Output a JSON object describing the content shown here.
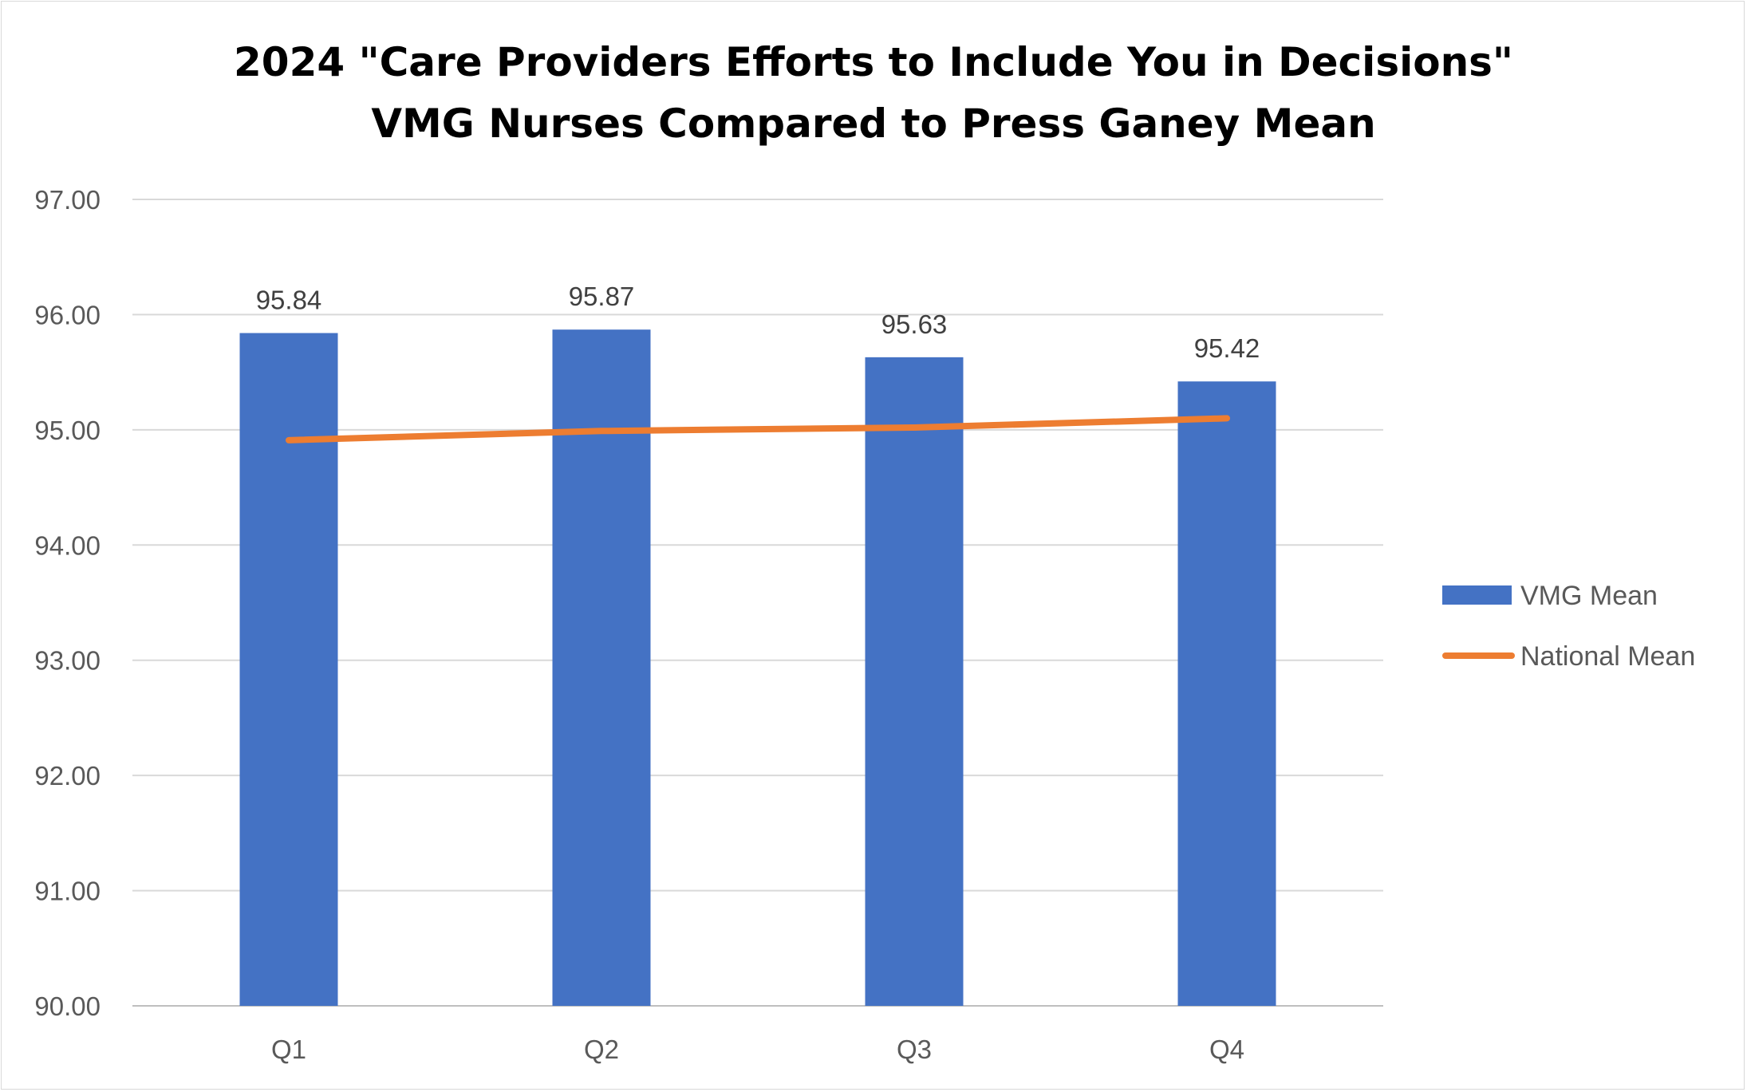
{
  "chart_data": {
    "type": "bar",
    "title": "2024 \"Care Providers Efforts to Include You in Decisions\"",
    "subtitle": "VMG Nurses Compared to Press Ganey Mean",
    "categories": [
      "Q1",
      "Q2",
      "Q3",
      "Q4"
    ],
    "series": [
      {
        "name": "VMG Mean",
        "type": "bar",
        "color": "#4472C4",
        "values": [
          95.84,
          95.87,
          95.63,
          95.42
        ],
        "data_labels": [
          "95.84",
          "95.87",
          "95.63",
          "95.42"
        ]
      },
      {
        "name": "National Mean",
        "type": "line",
        "color": "#ED7D31",
        "values": [
          94.91,
          94.99,
          95.02,
          95.1
        ]
      }
    ],
    "ylim": [
      90,
      97
    ],
    "yticks": [
      "90.00",
      "91.00",
      "92.00",
      "93.00",
      "94.00",
      "95.00",
      "96.00",
      "97.00"
    ],
    "xlabel": "",
    "ylabel": "",
    "grid": true,
    "legend": "right"
  }
}
